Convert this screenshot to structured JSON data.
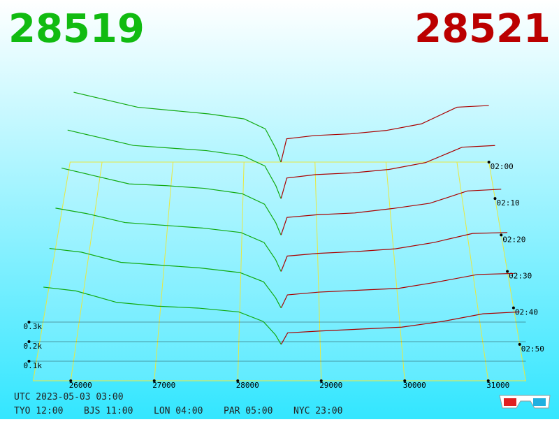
{
  "header": {
    "bid_price": "28519",
    "ask_price": "28521"
  },
  "chart_data": {
    "type": "depth3d",
    "xlim": [
      25550,
      31450
    ],
    "xticks": [
      26000,
      27000,
      28000,
      29000,
      30000,
      31000
    ],
    "zticks": [
      {
        "value": 100,
        "label": "0.1k"
      },
      {
        "value": 200,
        "label": "0.2k"
      },
      {
        "value": 300,
        "label": "0.3k"
      }
    ],
    "time_ticks": [
      "02:00",
      "02:10",
      "02:20",
      "02:30",
      "02:40",
      "02:50"
    ],
    "bid_color": "#11aa11",
    "ask_color": "#aa0000",
    "bid_prices": [
      25600,
      26000,
      26500,
      27000,
      27500,
      28000,
      28300,
      28450,
      28519
    ],
    "ask_prices": [
      28521,
      28600,
      29000,
      29500,
      30000,
      30500,
      31000,
      31450
    ],
    "snapshots": [
      {
        "bids": [
          420,
          380,
          330,
          310,
          290,
          260,
          200,
          80,
          0
        ],
        "asks": [
          0,
          140,
          160,
          170,
          190,
          230,
          330,
          340
        ]
      },
      {
        "bids": [
          400,
          360,
          310,
          295,
          280,
          250,
          190,
          75,
          0
        ],
        "asks": [
          0,
          120,
          140,
          150,
          170,
          210,
          300,
          310
        ]
      },
      {
        "bids": [
          380,
          340,
          290,
          280,
          265,
          235,
          175,
          70,
          0
        ],
        "asks": [
          0,
          100,
          115,
          125,
          150,
          180,
          250,
          260
        ]
      },
      {
        "bids": [
          350,
          320,
          270,
          255,
          240,
          215,
          160,
          65,
          0
        ],
        "asks": [
          0,
          85,
          100,
          110,
          125,
          160,
          210,
          215
        ]
      },
      {
        "bids": [
          320,
          300,
          245,
          230,
          215,
          190,
          140,
          55,
          0
        ],
        "asks": [
          0,
          70,
          85,
          95,
          105,
          140,
          180,
          185
        ]
      },
      {
        "bids": [
          300,
          280,
          220,
          200,
          190,
          170,
          120,
          50,
          0
        ],
        "asks": [
          0,
          60,
          70,
          80,
          90,
          120,
          160,
          170
        ]
      }
    ]
  },
  "footer": {
    "utc": "UTC 2023-05-03 03:00",
    "clocks": [
      "TYO 12:00",
      "BJS 11:00",
      "LON 04:00",
      "PAR 05:00",
      "NYC 23:00"
    ]
  }
}
